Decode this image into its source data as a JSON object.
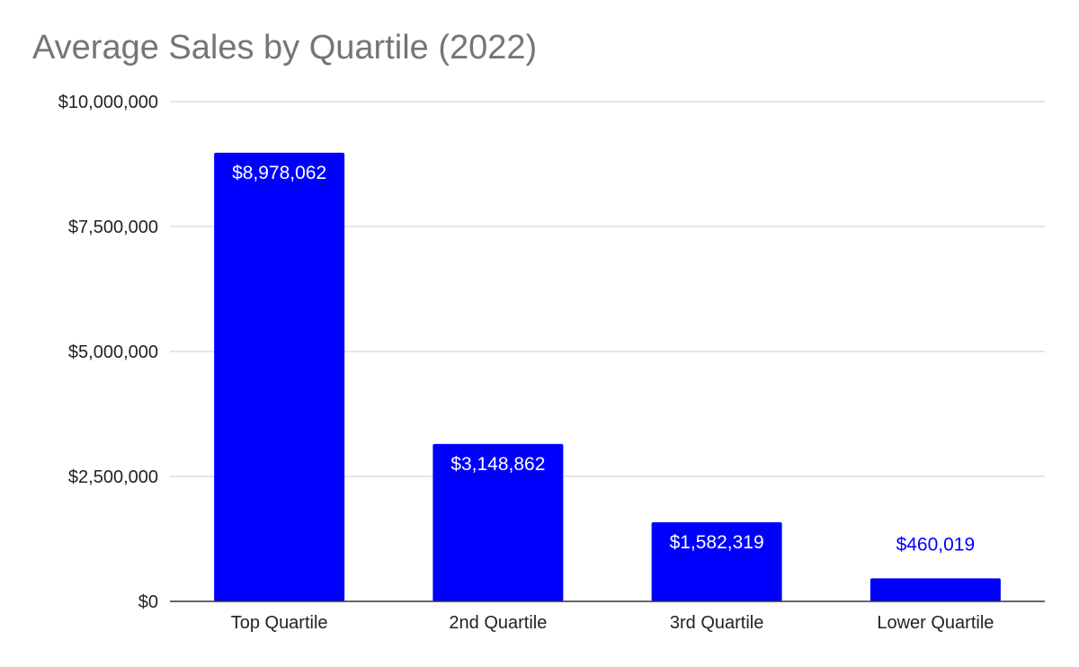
{
  "chart_data": {
    "type": "bar",
    "title": "Average Sales by Quartile (2022)",
    "xlabel": "",
    "ylabel": "",
    "categories": [
      "Top Quartile",
      "2nd Quartile",
      "3rd Quartile",
      "Lower Quartile"
    ],
    "values": [
      8978062,
      3148862,
      1582319,
      460019
    ],
    "data_labels": [
      "$8,978,062",
      "$3,148,862",
      "$1,582,319",
      "$460,019"
    ],
    "ylim": [
      0,
      10000000
    ],
    "y_ticks": [
      0,
      2500000,
      5000000,
      7500000,
      10000000
    ],
    "y_tick_labels": [
      "$0",
      "$2,500,000",
      "$5,000,000",
      "$7,500,000",
      "$10,000,000"
    ],
    "grid": true,
    "legend": "none",
    "colors": {
      "bar": "#0000ff",
      "label_inside": "#ffffff",
      "label_outside": "#0000ff",
      "title": "#757575",
      "gridline": "#cccccc",
      "baseline": "#333333",
      "tick_text": "#222222"
    }
  }
}
